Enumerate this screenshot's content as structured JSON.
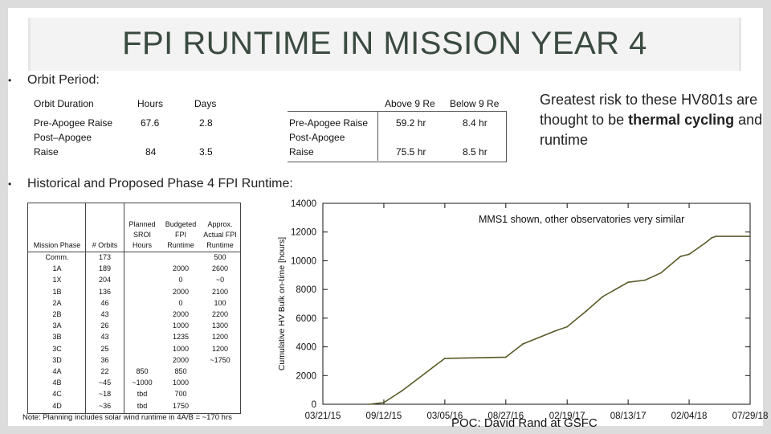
{
  "slide": {
    "title": "FPI RUNTIME IN MISSION YEAR 4",
    "bullet1": "Orbit Period:",
    "bullet2": "Historical and Proposed Phase 4 FPI Runtime:",
    "bullet_glyph": "•"
  },
  "orbit_table": {
    "headers": [
      "Orbit Duration",
      "Hours",
      "Days"
    ],
    "rows": [
      {
        "label": "Pre-Apogee Raise",
        "hours": "67.6",
        "days": "2.8"
      },
      {
        "label_line1": "Post–Apogee",
        "label_line2": "Raise",
        "hours": "84",
        "days": "3.5"
      }
    ]
  },
  "above_below_table": {
    "headers": [
      "Above 9 Re",
      "Below 9 Re"
    ],
    "rows": [
      {
        "label": "Pre-Apogee Raise",
        "above": "59.2 hr",
        "below": "8.4 hr"
      },
      {
        "label_line1": "Post-Apogee",
        "label_line2": "Raise",
        "above": "75.5 hr",
        "below": "8.5 hr"
      }
    ]
  },
  "risk_note": {
    "part1": "Greatest risk to these HV801s are thought to be ",
    "bold": "thermal cycling",
    "part2": " and runtime"
  },
  "runtime_table": {
    "headers": {
      "phase": "Mission Phase",
      "orbits": "# Orbits",
      "planned": [
        "Planned",
        "SROI",
        "Hours"
      ],
      "budgeted": [
        "Budgeted",
        "FPI",
        "Runtime"
      ],
      "approx": [
        "Approx.",
        "Actual FPI",
        "Runtime"
      ]
    },
    "rows": [
      {
        "phase": "Comm.",
        "orbits": "173",
        "planned": "",
        "budgeted": "",
        "approx": "500"
      },
      {
        "phase": "1A",
        "orbits": "189",
        "planned": "",
        "budgeted": "2000",
        "approx": "2600"
      },
      {
        "phase": "1X",
        "orbits": "204",
        "planned": "",
        "budgeted": "0",
        "approx": "~0"
      },
      {
        "phase": "1B",
        "orbits": "136",
        "planned": "",
        "budgeted": "2000",
        "approx": "2100"
      },
      {
        "phase": "2A",
        "orbits": "46",
        "planned": "",
        "budgeted": "0",
        "approx": "100"
      },
      {
        "phase": "2B",
        "orbits": "43",
        "planned": "",
        "budgeted": "2000",
        "approx": "2200"
      },
      {
        "phase": "3A",
        "orbits": "26",
        "planned": "",
        "budgeted": "1000",
        "approx": "1300"
      },
      {
        "phase": "3B",
        "orbits": "43",
        "planned": "",
        "budgeted": "1235",
        "approx": "1200"
      },
      {
        "phase": "3C",
        "orbits": "25",
        "planned": "",
        "budgeted": "1000",
        "approx": "1200"
      },
      {
        "phase": "3D",
        "orbits": "36",
        "planned": "",
        "budgeted": "2000",
        "approx": "~1750"
      },
      {
        "phase": "4A",
        "orbits": "22",
        "planned": "850",
        "budgeted": "850",
        "approx": ""
      },
      {
        "phase": "4B",
        "orbits": "~45",
        "planned": "~1000",
        "budgeted": "1000",
        "approx": ""
      },
      {
        "phase": "4C",
        "orbits": "~18",
        "planned": "tbd",
        "budgeted": "700",
        "approx": ""
      },
      {
        "phase": "4D",
        "orbits": "~36",
        "planned": "tbd",
        "budgeted": "1750",
        "approx": ""
      }
    ],
    "note": "Note: Planning includes solar wind runtime in 4A/B = ~170 hrs"
  },
  "chart_caption": "MMS1 shown, other observatories very similar",
  "poc": "POC: David Rand at GSFC",
  "colors": {
    "title": "#3a4a40",
    "line": "#5a5a2a",
    "axis": "#111111"
  },
  "chart_data": {
    "type": "line",
    "title": "",
    "xlabel": "",
    "ylabel": "Cumulative HV Bulk on-time [hours]",
    "x_tick_labels": [
      "03/21/15",
      "09/12/15",
      "03/05/16",
      "08/27/16",
      "02/19/17",
      "08/13/17",
      "02/04/18",
      "07/29/18"
    ],
    "ylim": [
      0,
      14000
    ],
    "y_ticks": [
      0,
      2000,
      4000,
      6000,
      8000,
      10000,
      12000,
      14000
    ],
    "grid": false,
    "series": [
      {
        "x": [
          "2015-08-01",
          "2015-09-12",
          "2015-11-01",
          "2015-12-20",
          "2016-02-01",
          "2016-03-05",
          "2016-08-27",
          "2016-10-15",
          "2017-01-15",
          "2017-02-19",
          "2017-04-15",
          "2017-06-01",
          "2017-08-13",
          "2017-10-01",
          "2017-11-15",
          "2018-01-10",
          "2018-02-04",
          "2018-03-20",
          "2018-04-10",
          "2018-04-22",
          "2018-07-29"
        ],
        "y": [
          0,
          120,
          900,
          1800,
          2600,
          3200,
          3280,
          4200,
          5100,
          5400,
          6500,
          7500,
          8500,
          8650,
          9150,
          10300,
          10450,
          11200,
          11600,
          11700,
          11700
        ]
      }
    ]
  }
}
